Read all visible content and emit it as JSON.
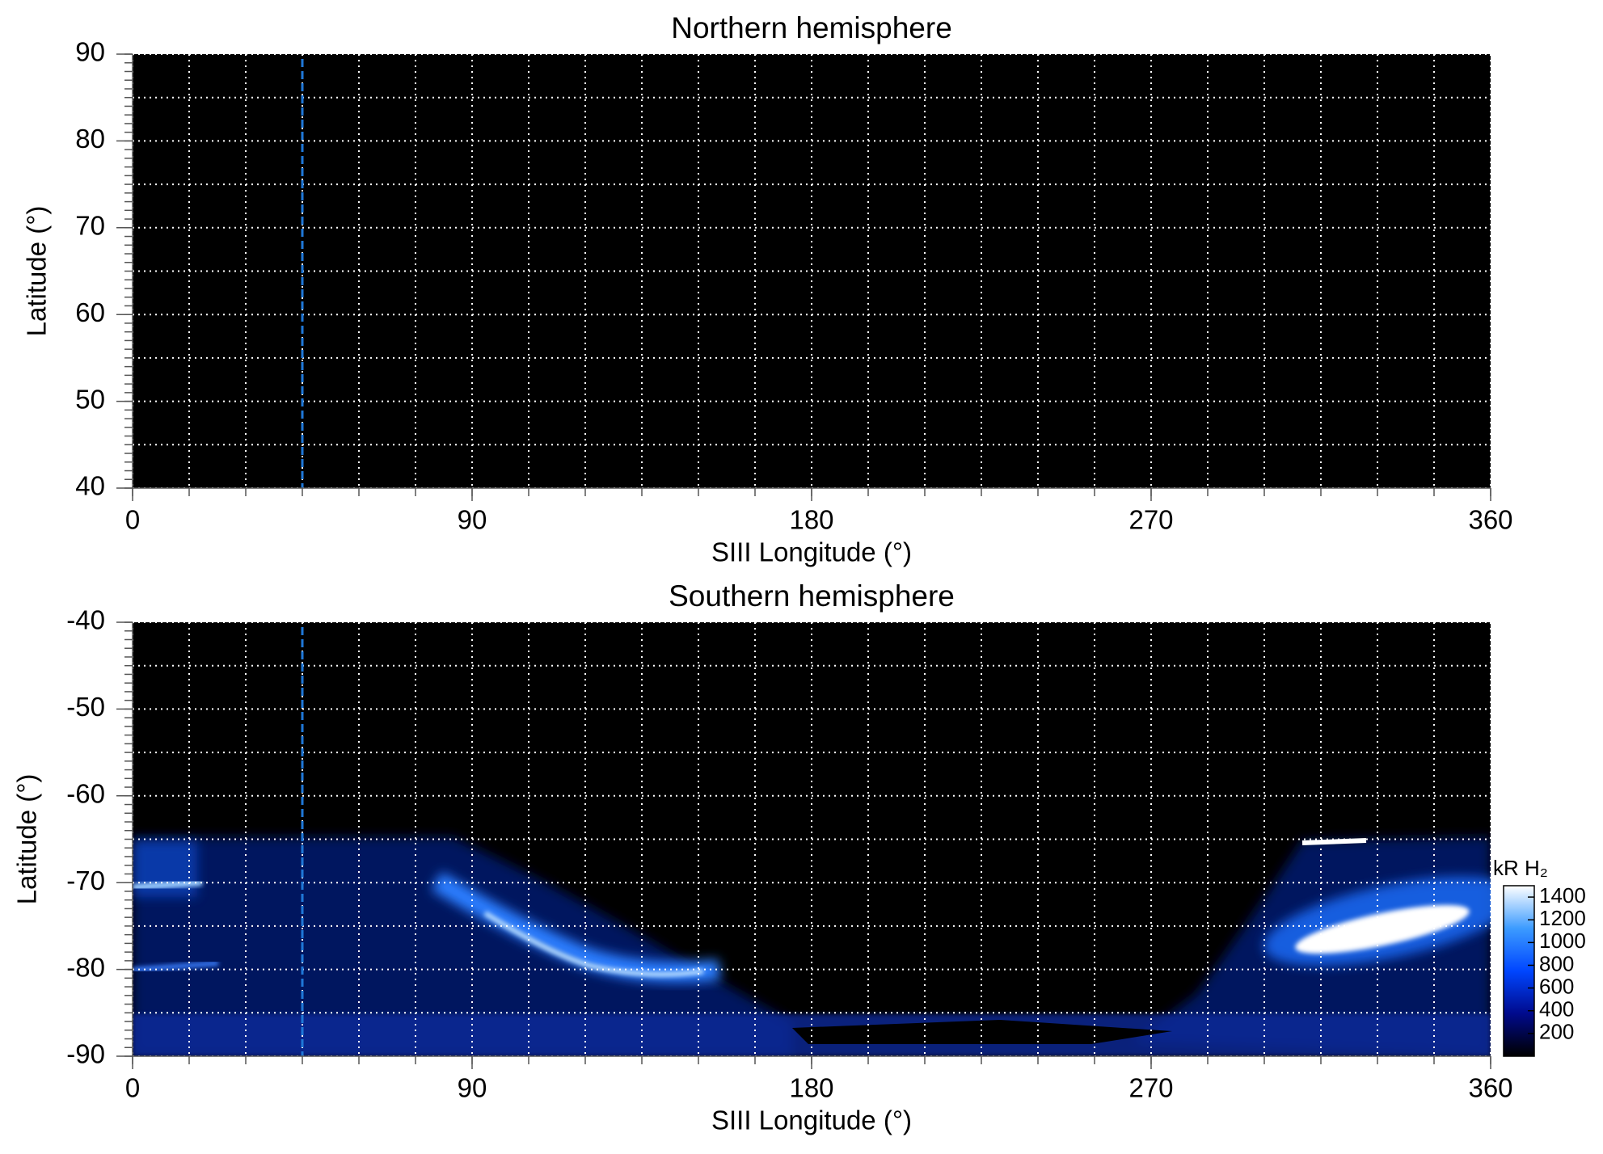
{
  "chart_data": [
    {
      "type": "heatmap",
      "title": "Northern hemisphere",
      "x_label": "SIII Longitude (°)",
      "y_label": "Latitude (°)",
      "xlim": [
        0,
        360
      ],
      "ylim": [
        40,
        90
      ],
      "xticks": [
        0,
        90,
        180,
        270,
        360
      ],
      "yticks": [
        40,
        50,
        60,
        70,
        80,
        90
      ],
      "xgrid": [
        0,
        15,
        30,
        45,
        60,
        75,
        90,
        105,
        120,
        135,
        150,
        165,
        180,
        195,
        210,
        225,
        240,
        255,
        270,
        285,
        300,
        315,
        330,
        345,
        360
      ],
      "ygrid": [
        40,
        45,
        50,
        55,
        60,
        65,
        70,
        75,
        80,
        85,
        90
      ],
      "yminorticks": [
        40,
        41,
        42,
        43,
        44,
        45,
        46,
        47,
        48,
        49,
        50,
        51,
        52,
        53,
        54,
        55,
        56,
        57,
        58,
        59,
        60,
        61,
        62,
        63,
        64,
        65,
        66,
        67,
        68,
        69,
        70,
        71,
        72,
        73,
        74,
        75,
        76,
        77,
        78,
        79,
        80,
        81,
        82,
        83,
        84,
        85,
        86,
        87,
        88,
        89,
        90
      ],
      "grid": true,
      "background": "#000000",
      "reference_lines": [
        {
          "x": 45,
          "color": "#1f78d8"
        }
      ]
    },
    {
      "type": "heatmap",
      "title": "Southern hemisphere",
      "x_label": "SIII Longitude (°)",
      "y_label": "Latitude (°)",
      "xlim": [
        0,
        360
      ],
      "ylim": [
        -90,
        -40
      ],
      "xticks": [
        0,
        90,
        180,
        270,
        360
      ],
      "yticks": [
        -90,
        -80,
        -70,
        -60,
        -50,
        -40
      ],
      "xgrid": [
        0,
        15,
        30,
        45,
        60,
        75,
        90,
        105,
        120,
        135,
        150,
        165,
        180,
        195,
        210,
        225,
        240,
        255,
        270,
        285,
        300,
        315,
        330,
        345,
        360
      ],
      "ygrid": [
        -90,
        -85,
        -80,
        -75,
        -70,
        -65,
        -60,
        -55,
        -50,
        -45,
        -40
      ],
      "yminorticks": [
        -90,
        -89,
        -88,
        -87,
        -86,
        -85,
        -84,
        -83,
        -82,
        -81,
        -80,
        -79,
        -78,
        -77,
        -76,
        -75,
        -74,
        -73,
        -72,
        -71,
        -70,
        -69,
        -68,
        -67,
        -66,
        -65,
        -64,
        -63,
        -62,
        -61,
        -60,
        -59,
        -58,
        -57,
        -56,
        -55,
        -54,
        -53,
        -52,
        -51,
        -50,
        -49,
        -48,
        -47,
        -46,
        -45,
        -44,
        -43,
        -42,
        -41,
        -40
      ],
      "grid": true,
      "background": "#000000",
      "reference_lines": [
        {
          "x": 45,
          "color": "#1f78d8"
        }
      ],
      "colorbar": {
        "label": "kR H₂",
        "lim": [
          0,
          1500
        ],
        "ticks": [
          200,
          400,
          600,
          800,
          1000,
          1200,
          1400
        ],
        "colormap": [
          "#000000",
          "#000a8c",
          "#0046ff",
          "#3c9bff",
          "#ffffff"
        ]
      }
    }
  ]
}
